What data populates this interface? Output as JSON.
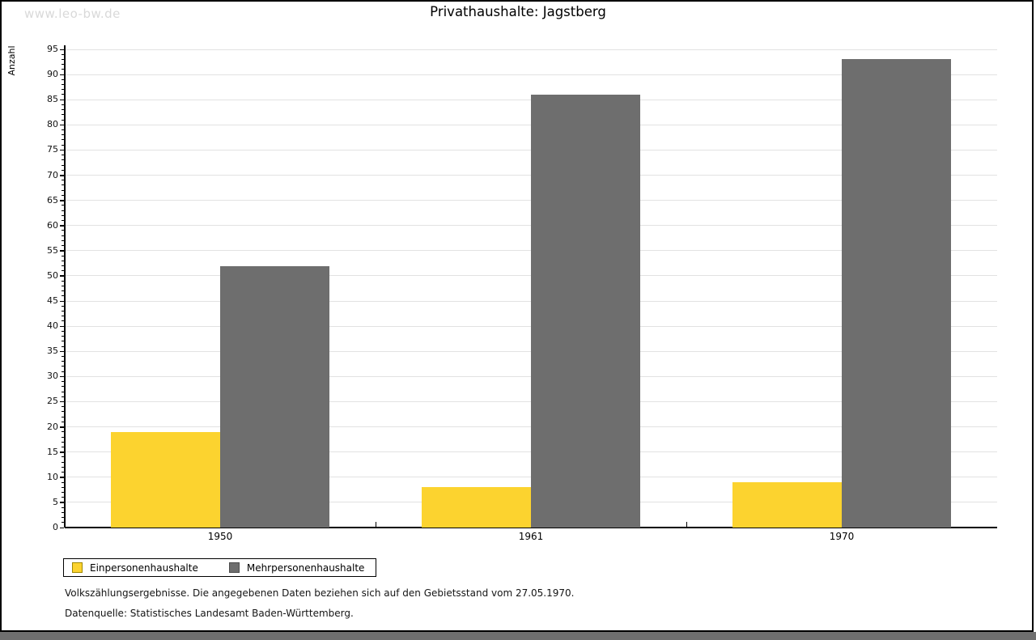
{
  "watermark": "www.leo-bw.de",
  "title": "Privathaushalte: Jagstberg",
  "chart_data": {
    "type": "bar",
    "title": "Privathaushalte: Jagstberg",
    "categories": [
      "1950",
      "1961",
      "1970"
    ],
    "series": [
      {
        "name": "Einpersonenhaushalte",
        "color": "#fcd32f",
        "border_color": "#a08900",
        "values": [
          19,
          8,
          9
        ]
      },
      {
        "name": "Mehrpersonenhaushalte",
        "color": "#6e6e6e",
        "border_color": "#4d4d4d",
        "values": [
          52,
          86,
          93
        ]
      }
    ],
    "xlabel": "",
    "ylabel": "Anzahl",
    "ylim": [
      0,
      95
    ],
    "ytick_step": 5,
    "minor_tick_step": 1,
    "grid": true,
    "legend_position": "bottom-left"
  },
  "footer": {
    "line1": "Volkszählungsergebnisse. Die angegebenen Daten beziehen sich auf den Gebietsstand vom 27.05.1970.",
    "line2": "Datenquelle: Statistisches Landesamt Baden-Württemberg."
  },
  "colors": {
    "background": "#ffffff",
    "frame_border": "#000000",
    "bottom_strip": "#6f6f6f",
    "gridline": "#e2e2e2",
    "watermark": "#d9d9d9"
  }
}
